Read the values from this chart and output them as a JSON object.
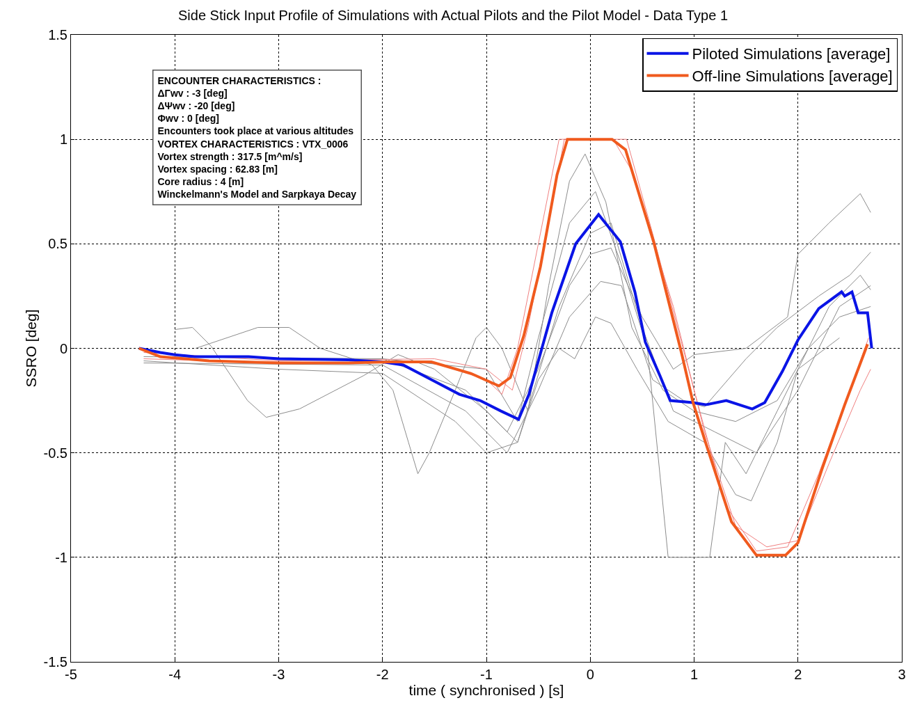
{
  "chart_data": {
    "type": "line",
    "title": "Side Stick Input Profile of Simulations with Actual Pilots and the Pilot Model - Data Type 1",
    "xlabel": "time ( synchronised ) [s]",
    "ylabel": "SSRO [deg]",
    "xlim": [
      -5,
      3
    ],
    "xticks": [
      -5,
      -4,
      -3,
      -2,
      -1,
      0,
      1,
      2,
      3
    ],
    "ylim": [
      -1.5,
      1.5
    ],
    "yticks": [
      -1.5,
      -1,
      -0.5,
      0,
      0.5,
      1,
      1.5
    ],
    "grid": true,
    "legend": "top right",
    "marker": "none",
    "line_style": "solid",
    "annotations": [
      "ENCOUNTER CHARACTERISTICS :",
      "ΔΓwv : -3 [deg]",
      "ΔΨwv : -20 [deg]",
      "Φwv : 0 [deg]",
      "Encounters took place at various altitudes",
      "VORTEX CHARACTERISTICS : VTX_0006",
      "Vortex strength : 317.5 [m^m/s]",
      "Vortex spacing : 62.83 [m]",
      "Core radius : 4 [m]",
      "Winckelmann's Model and Sarpkaya Decay"
    ],
    "series": [
      {
        "color": "#8c8c8c",
        "x": [
          -4.0,
          -3.83,
          -3.65,
          -3.3,
          -3.12,
          -2.8,
          -2.18,
          -1.85,
          -1.5,
          -1.0,
          -0.7,
          -0.3,
          0.0,
          0.2,
          0.5,
          0.8,
          1.2,
          1.6,
          2.0,
          2.4,
          2.7
        ],
        "values": [
          0.09,
          0.1,
          0.01,
          -0.25,
          -0.33,
          -0.29,
          -0.13,
          -0.03,
          -0.1,
          -0.3,
          -0.45,
          0.2,
          0.55,
          0.6,
          0.1,
          -0.3,
          -0.4,
          -0.5,
          -0.2,
          0.2,
          0.3
        ]
      },
      {
        "color": "#8c8c8c",
        "x": [
          -3.8,
          -3.2,
          -2.9,
          -2.6,
          -2.1,
          -1.9,
          -1.75,
          -1.66,
          -1.55,
          -1.3,
          -1.1,
          -1.0,
          -0.85,
          -0.6,
          -0.4,
          -0.2,
          -0.05,
          0.15,
          0.4,
          0.7,
          1.0,
          1.4,
          1.8,
          2.1,
          2.4,
          2.7
        ],
        "values": [
          0.0,
          0.1,
          0.1,
          0.0,
          -0.08,
          -0.2,
          -0.45,
          -0.6,
          -0.5,
          -0.2,
          0.05,
          0.1,
          0.0,
          -0.3,
          0.3,
          0.8,
          0.93,
          0.7,
          0.1,
          -0.2,
          -0.3,
          -0.35,
          -0.25,
          0.0,
          0.15,
          0.2
        ]
      },
      {
        "color": "#8c8c8c",
        "x": [
          -2,
          -1,
          -0.7,
          -0.5,
          -0.2,
          0.05,
          0.3,
          0.55,
          0.75,
          1.15,
          1.3,
          1.5,
          1.8,
          2.0,
          2.3,
          2.6,
          2.7
        ],
        "values": [
          -0.05,
          -0.1,
          -0.35,
          0.05,
          0.6,
          0.75,
          0.4,
          0.0,
          -1.0,
          -1.0,
          -0.45,
          -0.6,
          -0.3,
          -0.1,
          0.2,
          0.35,
          0.28
        ]
      },
      {
        "color": "#8c8c8c",
        "x": [
          -4.3,
          -3,
          -2,
          -1.3,
          -1.0,
          -0.7,
          -0.5,
          -0.3,
          -0.15,
          0.05,
          0.2,
          0.45,
          0.75,
          1.1,
          1.4,
          1.55,
          1.8,
          2.0,
          2.4
        ],
        "values": [
          -0.06,
          -0.1,
          -0.12,
          -0.35,
          -0.5,
          -0.45,
          -0.15,
          0.0,
          -0.05,
          0.15,
          0.12,
          -0.1,
          -0.35,
          -0.45,
          -0.7,
          -0.73,
          -0.45,
          -0.1,
          0.05
        ]
      },
      {
        "color": "#8c8c8c",
        "x": [
          -4.3,
          -2,
          -1.2,
          -0.8,
          -0.5,
          -0.2,
          0.0,
          0.2,
          0.5,
          0.8,
          1.0,
          1.5,
          1.9,
          2.0,
          2.3,
          2.6,
          2.7
        ],
        "values": [
          -0.04,
          -0.05,
          -0.2,
          -0.4,
          -0.1,
          0.3,
          0.45,
          0.48,
          0.15,
          -0.1,
          -0.03,
          0.0,
          0.15,
          0.45,
          0.6,
          0.74,
          0.65
        ]
      },
      {
        "color": "#8c8c8c",
        "x": [
          -4.3,
          -2,
          -1.2,
          -0.8,
          -0.5,
          -0.2,
          0.1,
          0.3,
          0.6,
          0.9,
          1.1,
          1.5,
          1.8,
          2.2,
          2.5,
          2.7
        ],
        "values": [
          -0.07,
          -0.08,
          -0.3,
          -0.5,
          -0.2,
          0.15,
          0.32,
          0.3,
          -0.15,
          -0.25,
          -0.28,
          -0.05,
          0.1,
          0.25,
          0.35,
          0.46
        ]
      },
      {
        "color": "#f08080",
        "x": [
          -4.3,
          -3,
          -1.5,
          -1,
          -0.85,
          -0.7,
          -0.5,
          -0.3,
          0.35,
          0.6,
          1.0,
          1.3,
          1.6,
          1.9,
          2.2,
          2.5,
          2.68
        ],
        "values": [
          -0.05,
          -0.07,
          -0.07,
          -0.15,
          -0.22,
          0.0,
          0.5,
          1.0,
          1.0,
          0.55,
          -0.2,
          -0.75,
          -0.97,
          -0.95,
          -0.6,
          -0.2,
          0.05
        ]
      },
      {
        "color": "#f08080",
        "x": [
          -4.3,
          -3,
          -1.5,
          -1,
          -0.75,
          -0.6,
          -0.4,
          -0.25,
          0.22,
          0.4,
          0.8,
          1.1,
          1.4,
          1.7,
          2.0,
          2.3,
          2.6,
          2.7
        ],
        "values": [
          -0.02,
          -0.06,
          -0.05,
          -0.1,
          -0.2,
          0.1,
          0.6,
          1.0,
          1.0,
          0.85,
          0.2,
          -0.4,
          -0.85,
          -0.95,
          -0.92,
          -0.55,
          -0.2,
          -0.1
        ]
      },
      {
        "name": "Piloted Simulations [average]",
        "color": "#0a14e6",
        "x": [
          -4.345,
          -4.14,
          -4.01,
          -3.81,
          -3.29,
          -3.0,
          -2.33,
          -2.0,
          -1.8,
          -1.53,
          -1.26,
          -1.06,
          -0.86,
          -0.69,
          -0.59,
          -0.37,
          -0.14,
          0.08,
          0.29,
          0.43,
          0.53,
          0.67,
          0.77,
          0.99,
          1.11,
          1.31,
          1.56,
          1.68,
          1.85,
          2.0,
          2.2,
          2.42,
          2.45,
          2.52,
          2.58,
          2.67,
          2.71
        ],
        "values": [
          0.0,
          -0.02,
          -0.03,
          -0.04,
          -0.04,
          -0.05,
          -0.055,
          -0.065,
          -0.08,
          -0.15,
          -0.22,
          -0.25,
          -0.3,
          -0.34,
          -0.22,
          0.17,
          0.5,
          0.64,
          0.51,
          0.27,
          0.03,
          -0.13,
          -0.25,
          -0.26,
          -0.27,
          -0.25,
          -0.29,
          -0.26,
          -0.11,
          0.04,
          0.19,
          0.27,
          0.25,
          0.27,
          0.17,
          0.17,
          0.0
        ]
      },
      {
        "name": "Off-line Simulations [average]",
        "color": "#f05a1e",
        "x": [
          -4.345,
          -4.14,
          -3.67,
          -3.0,
          -2.33,
          -1.93,
          -1.53,
          -1.15,
          -0.88,
          -0.77,
          -0.64,
          -0.48,
          -0.32,
          -0.22,
          0.21,
          0.34,
          0.61,
          0.88,
          0.99,
          1.11,
          1.36,
          1.6,
          1.88,
          2.0,
          2.23,
          2.45,
          2.67
        ],
        "values": [
          0.0,
          -0.04,
          -0.06,
          -0.07,
          -0.07,
          -0.065,
          -0.065,
          -0.12,
          -0.18,
          -0.14,
          0.06,
          0.39,
          0.83,
          1.0,
          1.0,
          0.95,
          0.51,
          -0.025,
          -0.26,
          -0.45,
          -0.83,
          -0.99,
          -0.99,
          -0.93,
          -0.58,
          -0.27,
          0.02
        ]
      }
    ]
  }
}
